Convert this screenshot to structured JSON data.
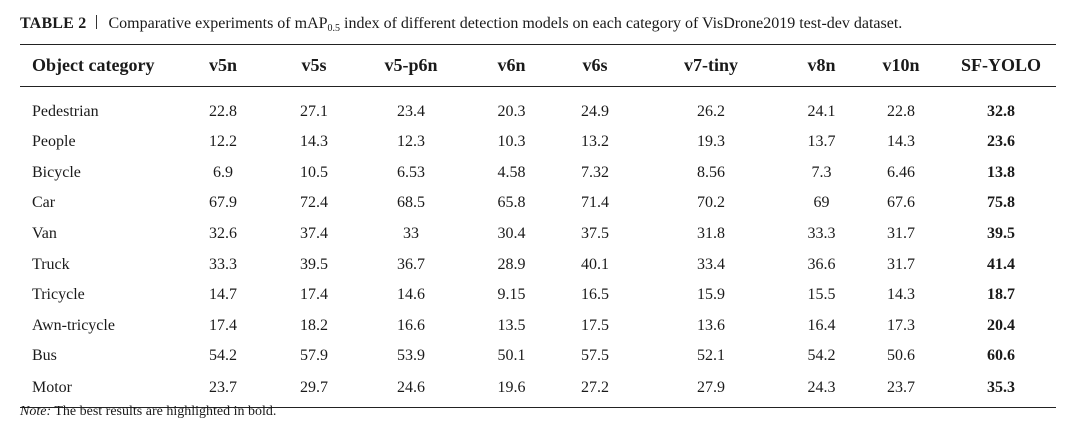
{
  "caption": {
    "label": "TABLE 2",
    "text_before": "Comparative experiments of mAP",
    "subscript": "0.5",
    "text_after": " index of different detection models on each category of VisDrone2019 test-dev dataset."
  },
  "table": {
    "headers": [
      "Object category",
      "v5n",
      "v5s",
      "v5-p6n",
      "v6n",
      "v6s",
      "v7-tiny",
      "v8n",
      "v10n",
      "SF-YOLO"
    ],
    "rows": [
      {
        "category": "Pedestrian",
        "values": [
          "22.8",
          "27.1",
          "23.4",
          "20.3",
          "24.9",
          "26.2",
          "24.1",
          "22.8",
          "32.8"
        ]
      },
      {
        "category": "People",
        "values": [
          "12.2",
          "14.3",
          "12.3",
          "10.3",
          "13.2",
          "19.3",
          "13.7",
          "14.3",
          "23.6"
        ]
      },
      {
        "category": "Bicycle",
        "values": [
          "6.9",
          "10.5",
          "6.53",
          "4.58",
          "7.32",
          "8.56",
          "7.3",
          "6.46",
          "13.8"
        ]
      },
      {
        "category": "Car",
        "values": [
          "67.9",
          "72.4",
          "68.5",
          "65.8",
          "71.4",
          "70.2",
          "69",
          "67.6",
          "75.8"
        ]
      },
      {
        "category": "Van",
        "values": [
          "32.6",
          "37.4",
          "33",
          "30.4",
          "37.5",
          "31.8",
          "33.3",
          "31.7",
          "39.5"
        ]
      },
      {
        "category": "Truck",
        "values": [
          "33.3",
          "39.5",
          "36.7",
          "28.9",
          "40.1",
          "33.4",
          "36.6",
          "31.7",
          "41.4"
        ]
      },
      {
        "category": "Tricycle",
        "values": [
          "14.7",
          "17.4",
          "14.6",
          "9.15",
          "16.5",
          "15.9",
          "15.5",
          "14.3",
          "18.7"
        ]
      },
      {
        "category": "Awn-tricycle",
        "values": [
          "17.4",
          "18.2",
          "16.6",
          "13.5",
          "17.5",
          "13.6",
          "16.4",
          "17.3",
          "20.4"
        ]
      },
      {
        "category": "Bus",
        "values": [
          "54.2",
          "57.9",
          "53.9",
          "50.1",
          "57.5",
          "52.1",
          "54.2",
          "50.6",
          "60.6"
        ]
      },
      {
        "category": "Motor",
        "values": [
          "23.7",
          "29.7",
          "24.6",
          "19.6",
          "27.2",
          "27.9",
          "24.3",
          "23.7",
          "35.3"
        ]
      }
    ],
    "bold_column_index": 8
  },
  "note": {
    "label": "Note:",
    "text": " The best results are highlighted in bold."
  }
}
